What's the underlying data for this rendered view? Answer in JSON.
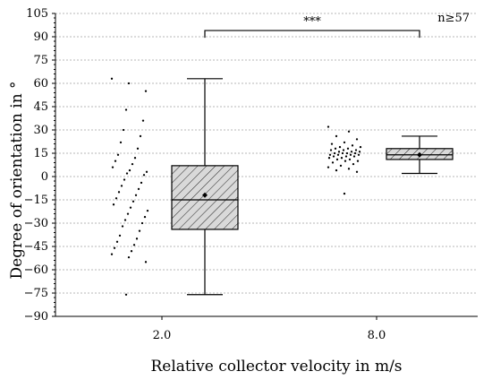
{
  "chart_data": {
    "type": "box",
    "xlabel": "Relative collector velocity in m/s",
    "ylabel": "Degree of orientation in °",
    "ylim": [
      -90,
      105
    ],
    "yticks": [
      -90,
      -75,
      -60,
      -45,
      -30,
      -15,
      0,
      15,
      30,
      45,
      60,
      75,
      90,
      105
    ],
    "yticks_labels": [
      "−90",
      "−75",
      "−60",
      "−45",
      "−30",
      "−15",
      "0",
      "15",
      "30",
      "45",
      "60",
      "75",
      "90",
      "105"
    ],
    "categories": [
      "2.0",
      "8.0"
    ],
    "grid": true,
    "annotation_n": "n≥57",
    "significance": {
      "label": "***",
      "from_category": "2.0",
      "to_category": "8.0",
      "y": 94
    },
    "boxes": [
      {
        "category": "2.0",
        "min": -76,
        "q1": -34,
        "median": -15,
        "q3": 7,
        "max": 63,
        "mean": -12
      },
      {
        "category": "8.0",
        "min": 2,
        "q1": 11,
        "median": 14,
        "q3": 18,
        "max": 26,
        "mean": 14
      }
    ],
    "points": [
      {
        "category": "2.0",
        "values": [
          63,
          60,
          55,
          43,
          36,
          30,
          26,
          22,
          18,
          14,
          12,
          10,
          8,
          6,
          4,
          3,
          2,
          1,
          -2,
          -4,
          -6,
          -8,
          -10,
          -12,
          -14,
          -16,
          -18,
          -20,
          -22,
          -24,
          -26,
          -28,
          -30,
          -32,
          -35,
          -38,
          -40,
          -42,
          -44,
          -46,
          -48,
          -50,
          -52,
          -55,
          -76
        ]
      },
      {
        "category": "8.0",
        "values": [
          32,
          29,
          26,
          24,
          22,
          21,
          20,
          19,
          19,
          18,
          18,
          17,
          17,
          17,
          16,
          16,
          16,
          15,
          15,
          15,
          15,
          14,
          14,
          14,
          14,
          13,
          13,
          13,
          12,
          12,
          11,
          11,
          10,
          10,
          9,
          8,
          7,
          6,
          5,
          4,
          3,
          -11
        ]
      }
    ]
  }
}
